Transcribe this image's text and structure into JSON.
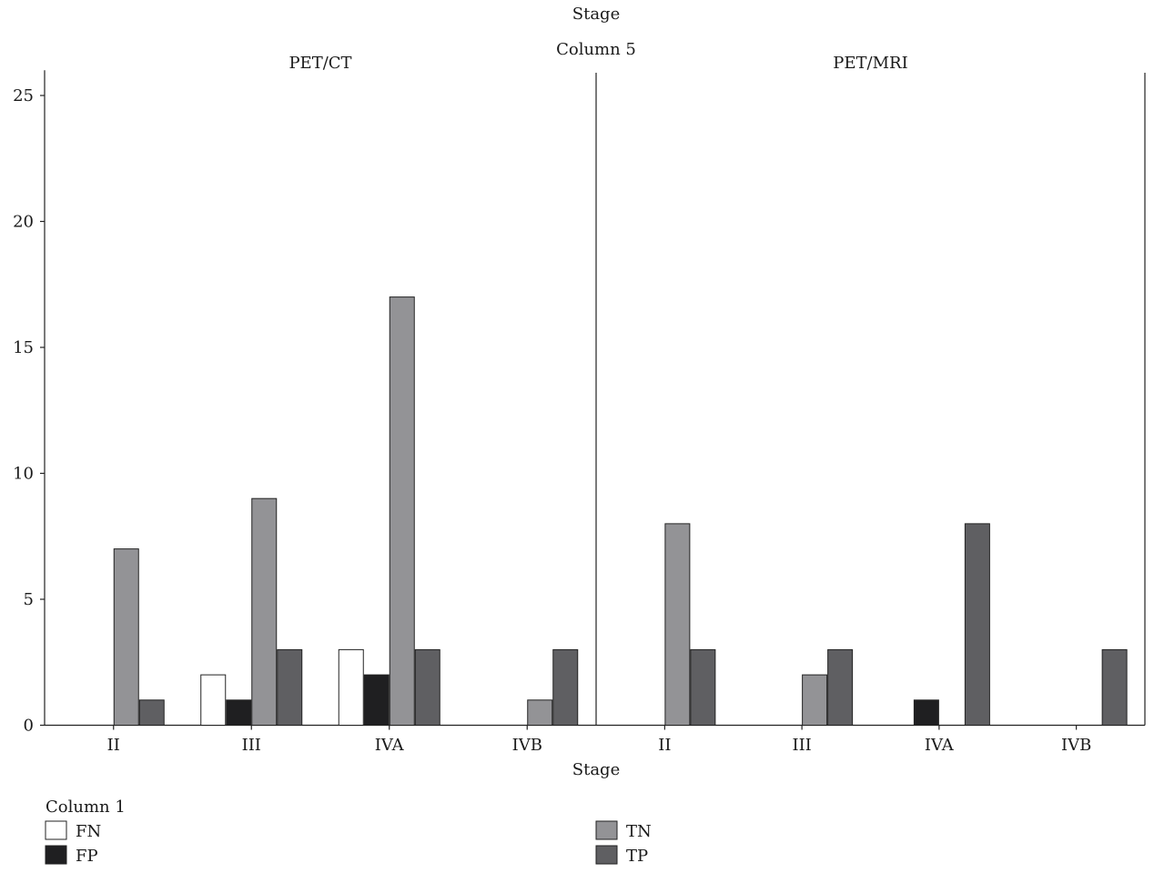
{
  "chart_data": {
    "type": "bar",
    "title": "Stage",
    "subtitle": "Column 5",
    "xlabel": "Stage",
    "ylabel": "",
    "ylim": [
      0,
      26
    ],
    "yticks": [
      0,
      5,
      10,
      15,
      20,
      25
    ],
    "grid": false,
    "legend_title": "Column 1",
    "legend_position": "bottom",
    "categories": [
      "II",
      "III",
      "IVA",
      "IVB"
    ],
    "colors": {
      "FN": "#ffffff",
      "FP": "#1f1f21",
      "TN": "#939396",
      "TP": "#5f5f62"
    },
    "panels": [
      {
        "name": "PET/CT",
        "series": [
          {
            "name": "FN",
            "values": [
              0,
              2,
              3,
              0
            ]
          },
          {
            "name": "FP",
            "values": [
              0,
              1,
              2,
              0
            ]
          },
          {
            "name": "TN",
            "values": [
              7,
              9,
              17,
              1
            ]
          },
          {
            "name": "TP",
            "values": [
              1,
              3,
              3,
              3
            ]
          }
        ]
      },
      {
        "name": "PET/MRI",
        "series": [
          {
            "name": "FN",
            "values": [
              0,
              0,
              0,
              0
            ]
          },
          {
            "name": "FP",
            "values": [
              0,
              0,
              1,
              0
            ]
          },
          {
            "name": "TN",
            "values": [
              8,
              2,
              0,
              0
            ]
          },
          {
            "name": "TP",
            "values": [
              3,
              3,
              8,
              3
            ]
          }
        ]
      }
    ]
  }
}
